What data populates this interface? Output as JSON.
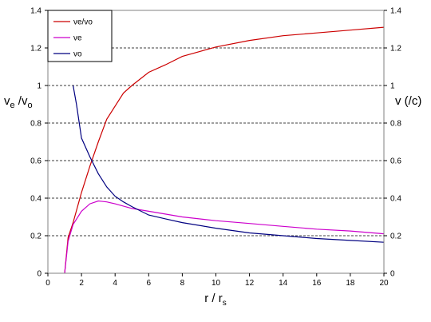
{
  "chart_data": {
    "type": "line",
    "xlabel_main": "r / r",
    "xlabel_sub": "s",
    "ylabel_left_main": "v",
    "ylabel_left_sub1": "e",
    "ylabel_left_mid": " /v",
    "ylabel_left_sub2": "o",
    "ylabel_right": "v (/c)",
    "xlim": [
      0,
      20
    ],
    "ylim": [
      0,
      1.4
    ],
    "x_ticks": [
      "0",
      "2",
      "4",
      "6",
      "8",
      "10",
      "12",
      "14",
      "16",
      "18",
      "20"
    ],
    "y_ticks_left": [
      "0",
      "0.2",
      "0.4",
      "0.6",
      "0.8",
      "1",
      "1.2",
      "1.4"
    ],
    "y_ticks_right": [
      "0",
      "0.2",
      "0.4",
      "0.6",
      "0.8",
      "1",
      "1.2",
      "1.4"
    ],
    "grid": "horizontal-dashed",
    "legend_position": "top-left",
    "series": [
      {
        "name": "ve/vo",
        "color": "#cc0000",
        "points": [
          [
            1.0,
            0.0
          ],
          [
            1.2,
            0.19
          ],
          [
            1.5,
            0.27
          ],
          [
            2.0,
            0.43
          ],
          [
            2.5,
            0.57
          ],
          [
            3.0,
            0.7
          ],
          [
            3.5,
            0.82
          ],
          [
            4.0,
            0.89
          ],
          [
            4.5,
            0.96
          ],
          [
            5.0,
            1.0
          ],
          [
            6.0,
            1.07
          ],
          [
            7.0,
            1.11
          ],
          [
            8.0,
            1.155
          ],
          [
            9.0,
            1.18
          ],
          [
            10.0,
            1.205
          ],
          [
            12.0,
            1.24
          ],
          [
            14.0,
            1.265
          ],
          [
            16.0,
            1.28
          ],
          [
            18.0,
            1.295
          ],
          [
            20.0,
            1.31
          ]
        ]
      },
      {
        "name": "ve",
        "color": "#cc00cc",
        "points": [
          [
            1.0,
            0.0
          ],
          [
            1.2,
            0.17
          ],
          [
            1.5,
            0.26
          ],
          [
            2.0,
            0.33
          ],
          [
            2.5,
            0.37
          ],
          [
            3.0,
            0.385
          ],
          [
            3.5,
            0.38
          ],
          [
            4.0,
            0.37
          ],
          [
            5.0,
            0.345
          ],
          [
            6.0,
            0.33
          ],
          [
            8.0,
            0.3
          ],
          [
            10.0,
            0.28
          ],
          [
            12.0,
            0.265
          ],
          [
            14.0,
            0.25
          ],
          [
            16.0,
            0.235
          ],
          [
            18.0,
            0.225
          ],
          [
            20.0,
            0.21
          ]
        ]
      },
      {
        "name": "vo",
        "color": "#000080",
        "points": [
          [
            1.5,
            1.0
          ],
          [
            1.7,
            0.9
          ],
          [
            2.0,
            0.72
          ],
          [
            2.5,
            0.62
          ],
          [
            3.0,
            0.53
          ],
          [
            3.5,
            0.46
          ],
          [
            4.0,
            0.41
          ],
          [
            4.5,
            0.38
          ],
          [
            5.0,
            0.355
          ],
          [
            6.0,
            0.31
          ],
          [
            7.0,
            0.29
          ],
          [
            8.0,
            0.27
          ],
          [
            10.0,
            0.24
          ],
          [
            12.0,
            0.215
          ],
          [
            14.0,
            0.2
          ],
          [
            16.0,
            0.185
          ],
          [
            18.0,
            0.175
          ],
          [
            20.0,
            0.165
          ]
        ]
      }
    ]
  }
}
